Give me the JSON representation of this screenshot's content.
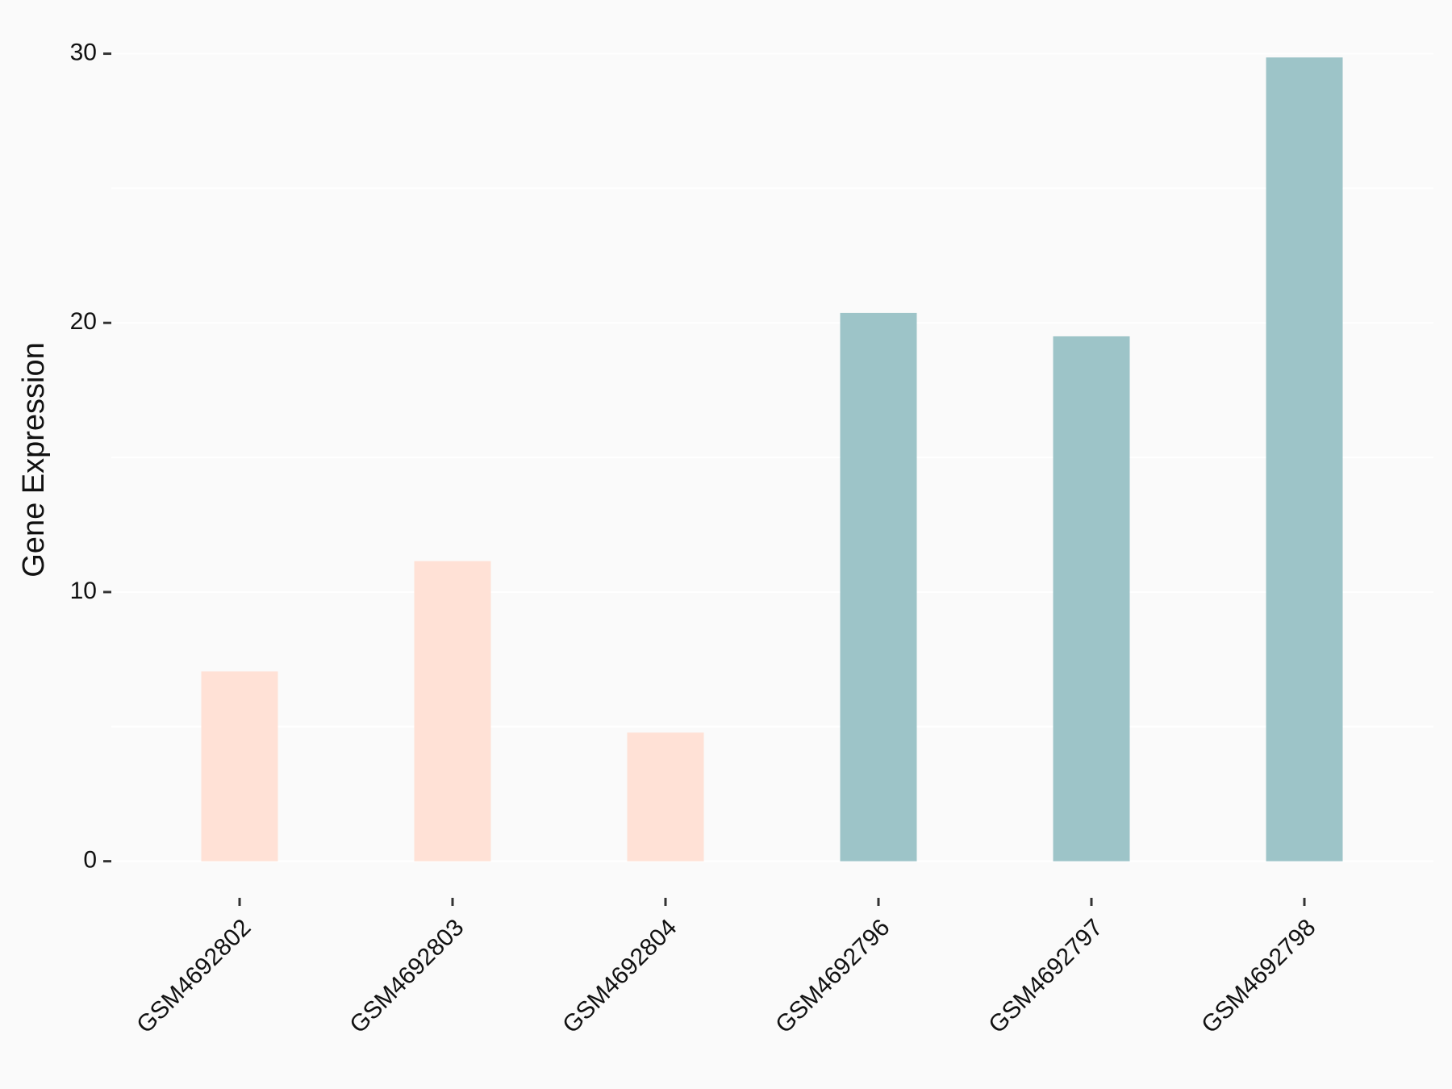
{
  "chart_data": {
    "type": "bar",
    "y_label": "Gene Expression",
    "categories": [
      "GSM4692802",
      "GSM4692803",
      "GSM4692804",
      "GSM4692796",
      "GSM4692797",
      "GSM4692798"
    ],
    "values": [
      7.05,
      11.15,
      4.78,
      20.37,
      19.5,
      29.86
    ],
    "colors": [
      "#ffe1d6",
      "#ffe1d6",
      "#ffe1d6",
      "#9dc4c8",
      "#9dc4c8",
      "#9dc4c8"
    ],
    "ylim": [
      -1.5,
      31.5
    ],
    "yticks": [
      0,
      10,
      20,
      30
    ],
    "y_minor_ticks": [
      5,
      15,
      25
    ],
    "grid": true
  }
}
